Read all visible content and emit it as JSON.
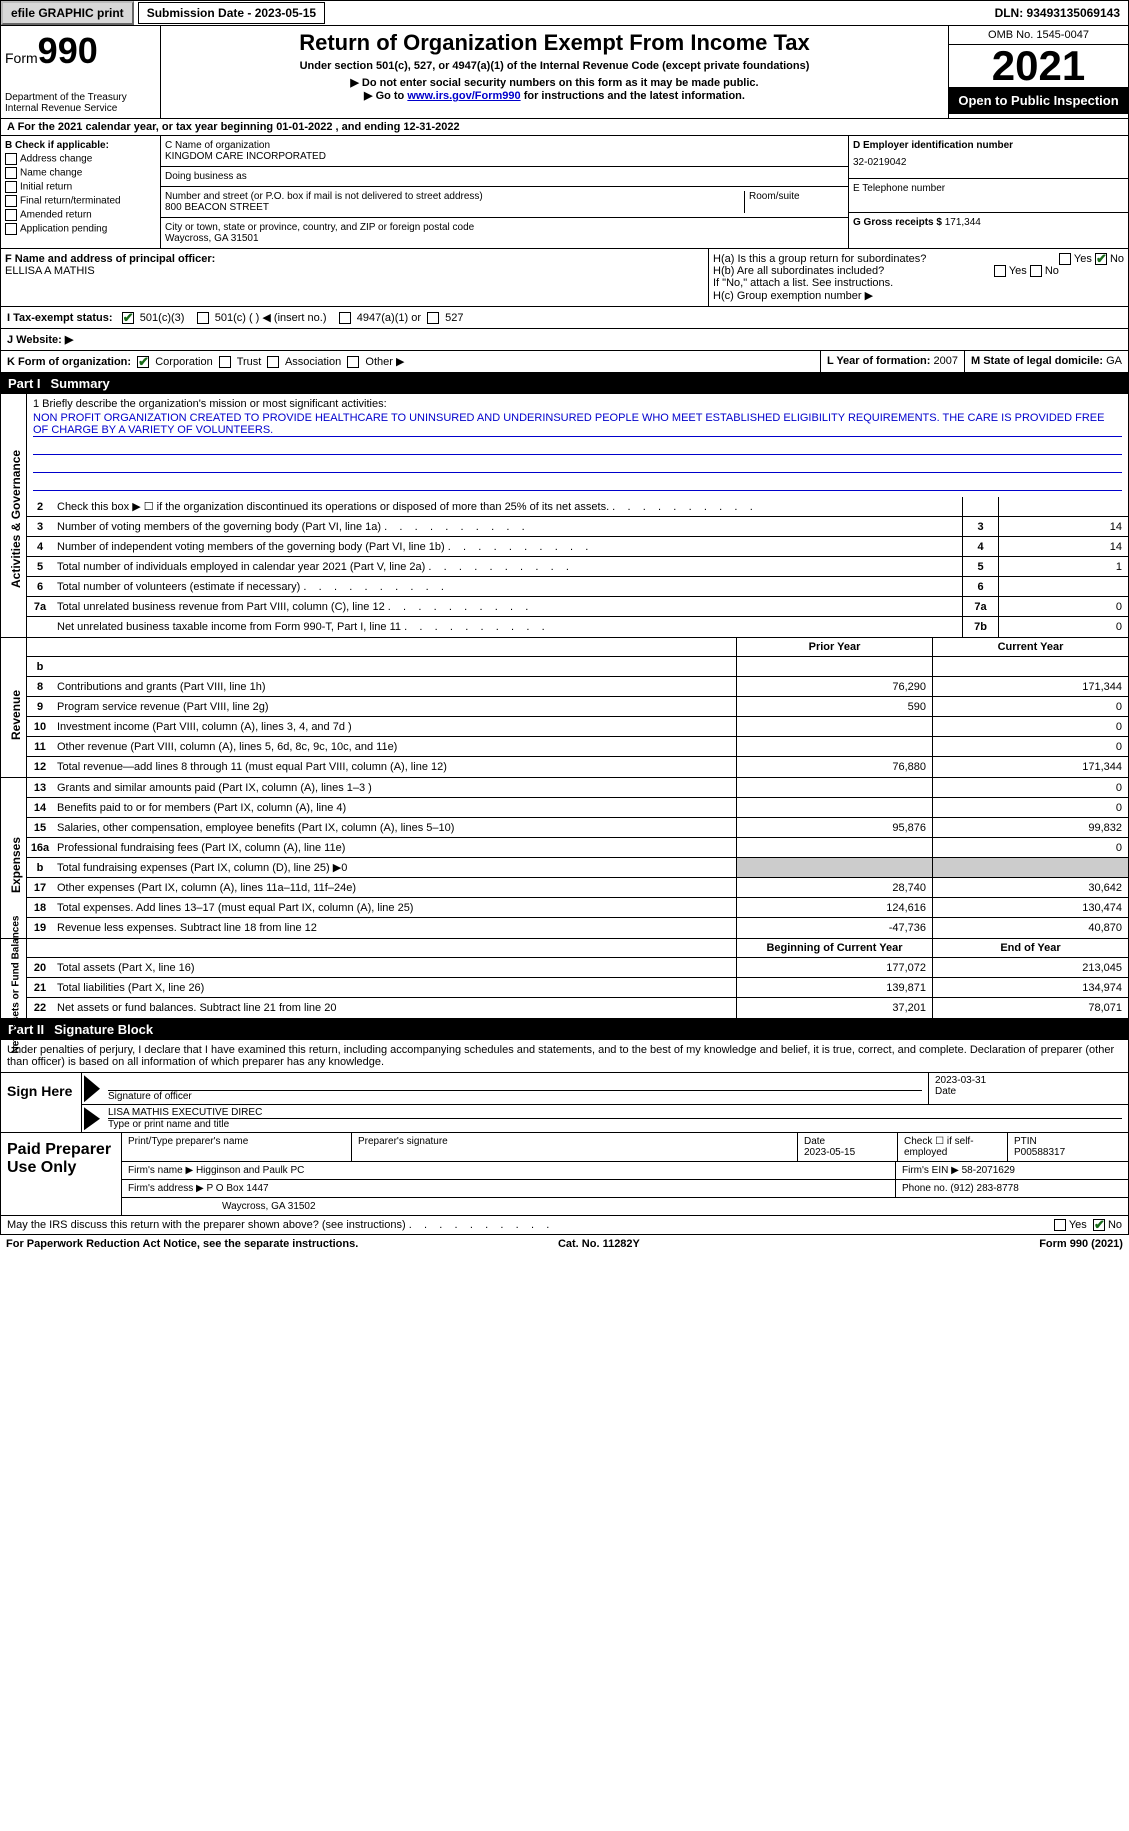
{
  "topbar": {
    "efile_btn": "efile GRAPHIC print",
    "sub_date_lbl": "Submission Date - 2023-05-15",
    "dln": "DLN: 93493135069143"
  },
  "header": {
    "form_lbl": "Form",
    "form_num": "990",
    "dept": "Department of the Treasury Internal Revenue Service",
    "title": "Return of Organization Exempt From Income Tax",
    "subtitle": "Under section 501(c), 527, or 4947(a)(1) of the Internal Revenue Code (except private foundations)",
    "note1": "▶ Do not enter social security numbers on this form as it may be made public.",
    "note2_pre": "▶ Go to ",
    "note2_link": "www.irs.gov/Form990",
    "note2_post": " for instructions and the latest information.",
    "omb": "OMB No. 1545-0047",
    "year": "2021",
    "open": "Open to Public Inspection"
  },
  "row_a": "A For the 2021 calendar year, or tax year beginning 01-01-2022    , and ending 12-31-2022",
  "col_b": {
    "hdr": "B Check if applicable:",
    "opts": [
      "Address change",
      "Name change",
      "Initial return",
      "Final return/terminated",
      "Amended return",
      "Application pending"
    ]
  },
  "col_c": {
    "name_lbl": "C Name of organization",
    "name": "KINGDOM CARE INCORPORATED",
    "dba_lbl": "Doing business as",
    "dba": "",
    "addr_lbl": "Number and street (or P.O. box if mail is not delivered to street address)",
    "addr": "800 BEACON STREET",
    "room_lbl": "Room/suite",
    "city_lbl": "City or town, state or province, country, and ZIP or foreign postal code",
    "city": "Waycross, GA  31501"
  },
  "col_de": {
    "d_lbl": "D Employer identification number",
    "d_val": "32-0219042",
    "e_lbl": "E Telephone number",
    "e_val": "",
    "g_lbl": "G Gross receipts $",
    "g_val": "171,344"
  },
  "col_f": {
    "lbl": "F  Name and address of principal officer:",
    "val": "ELLISA A MATHIS"
  },
  "col_h": {
    "ha_lbl": "H(a)  Is this a group return for subordinates?",
    "hb_lbl": "H(b)  Are all subordinates included?",
    "hb_note": "If \"No,\" attach a list. See instructions.",
    "hc_lbl": "H(c)  Group exemption number ▶",
    "yes": "Yes",
    "no": "No"
  },
  "row_i": {
    "lbl": "I    Tax-exempt status:",
    "o1": "501(c)(3)",
    "o2": "501(c) (  ) ◀ (insert no.)",
    "o3": "4947(a)(1) or",
    "o4": "527"
  },
  "row_j": {
    "lbl": "J   Website: ▶"
  },
  "row_k": {
    "k_lbl": "K Form of organization:",
    "k_opts": [
      "Corporation",
      "Trust",
      "Association",
      "Other ▶"
    ],
    "l_lbl": "L Year of formation:",
    "l_val": "2007",
    "m_lbl": "M State of legal domicile:",
    "m_val": "GA"
  },
  "part1": {
    "num": "Part I",
    "title": "Summary"
  },
  "mission": {
    "lbl": "1   Briefly describe the organization's mission or most significant activities:",
    "text": "NON PROFIT ORGANIZATION CREATED TO PROVIDE HEALTHCARE TO UNINSURED AND UNDERINSURED PEOPLE WHO MEET ESTABLISHED ELIGIBILITY REQUIREMENTS. THE CARE IS PROVIDED FREE OF CHARGE BY A VARIETY OF VOLUNTEERS."
  },
  "ag_lines": [
    {
      "n": "2",
      "d": "Check this box ▶ ☐ if the organization discontinued its operations or disposed of more than 25% of its net assets.",
      "box": "",
      "val": ""
    },
    {
      "n": "3",
      "d": "Number of voting members of the governing body (Part VI, line 1a)",
      "box": "3",
      "val": "14"
    },
    {
      "n": "4",
      "d": "Number of independent voting members of the governing body (Part VI, line 1b)",
      "box": "4",
      "val": "14"
    },
    {
      "n": "5",
      "d": "Total number of individuals employed in calendar year 2021 (Part V, line 2a)",
      "box": "5",
      "val": "1"
    },
    {
      "n": "6",
      "d": "Total number of volunteers (estimate if necessary)",
      "box": "6",
      "val": ""
    },
    {
      "n": "7a",
      "d": "Total unrelated business revenue from Part VIII, column (C), line 12",
      "box": "7a",
      "val": "0"
    },
    {
      "n": "",
      "d": "Net unrelated business taxable income from Form 990-T, Part I, line 11",
      "box": "7b",
      "val": "0"
    }
  ],
  "pycy": {
    "prior": "Prior Year",
    "current": "Current Year"
  },
  "rev_lines": [
    {
      "n": "b",
      "d": "",
      "v1": "",
      "v2": "",
      "shade": false
    },
    {
      "n": "8",
      "d": "Contributions and grants (Part VIII, line 1h)",
      "v1": "76,290",
      "v2": "171,344"
    },
    {
      "n": "9",
      "d": "Program service revenue (Part VIII, line 2g)",
      "v1": "590",
      "v2": "0"
    },
    {
      "n": "10",
      "d": "Investment income (Part VIII, column (A), lines 3, 4, and 7d )",
      "v1": "",
      "v2": "0"
    },
    {
      "n": "11",
      "d": "Other revenue (Part VIII, column (A), lines 5, 6d, 8c, 9c, 10c, and 11e)",
      "v1": "",
      "v2": "0"
    },
    {
      "n": "12",
      "d": "Total revenue—add lines 8 through 11 (must equal Part VIII, column (A), line 12)",
      "v1": "76,880",
      "v2": "171,344"
    }
  ],
  "exp_lines": [
    {
      "n": "13",
      "d": "Grants and similar amounts paid (Part IX, column (A), lines 1–3 )",
      "v1": "",
      "v2": "0"
    },
    {
      "n": "14",
      "d": "Benefits paid to or for members (Part IX, column (A), line 4)",
      "v1": "",
      "v2": "0"
    },
    {
      "n": "15",
      "d": "Salaries, other compensation, employee benefits (Part IX, column (A), lines 5–10)",
      "v1": "95,876",
      "v2": "99,832"
    },
    {
      "n": "16a",
      "d": "Professional fundraising fees (Part IX, column (A), line 11e)",
      "v1": "",
      "v2": "0"
    },
    {
      "n": "b",
      "d": "Total fundraising expenses (Part IX, column (D), line 25) ▶0",
      "v1": "",
      "v2": "",
      "shade": true
    },
    {
      "n": "17",
      "d": "Other expenses (Part IX, column (A), lines 11a–11d, 11f–24e)",
      "v1": "28,740",
      "v2": "30,642"
    },
    {
      "n": "18",
      "d": "Total expenses. Add lines 13–17 (must equal Part IX, column (A), line 25)",
      "v1": "124,616",
      "v2": "130,474"
    },
    {
      "n": "19",
      "d": "Revenue less expenses. Subtract line 18 from line 12",
      "v1": "-47,736",
      "v2": "40,870"
    }
  ],
  "na_hdr": {
    "begin": "Beginning of Current Year",
    "end": "End of Year"
  },
  "na_lines": [
    {
      "n": "20",
      "d": "Total assets (Part X, line 16)",
      "v1": "177,072",
      "v2": "213,045"
    },
    {
      "n": "21",
      "d": "Total liabilities (Part X, line 26)",
      "v1": "139,871",
      "v2": "134,974"
    },
    {
      "n": "22",
      "d": "Net assets or fund balances. Subtract line 21 from line 20",
      "v1": "37,201",
      "v2": "78,071"
    }
  ],
  "vtabs": {
    "ag": "Activities & Governance",
    "rev": "Revenue",
    "exp": "Expenses",
    "na": "Net Assets or Fund Balances"
  },
  "part2": {
    "num": "Part II",
    "title": "Signature Block"
  },
  "penalties": "Under penalties of perjury, I declare that I have examined this return, including accompanying schedules and statements, and to the best of my knowledge and belief, it is true, correct, and complete. Declaration of preparer (other than officer) is based on all information of which preparer has any knowledge.",
  "sign": {
    "lbl": "Sign Here",
    "sig_lbl": "Signature of officer",
    "date_val": "2023-03-31",
    "date_lbl": "Date",
    "name_val": "LISA MATHIS  EXECUTIVE DIREC",
    "name_lbl": "Type or print name and title"
  },
  "paid": {
    "lbl": "Paid Preparer Use Only",
    "r1": {
      "c1_lbl": "Print/Type preparer's name",
      "c1": "",
      "c2_lbl": "Preparer's signature",
      "c2": "",
      "c3_lbl": "Date",
      "c3": "2023-05-15",
      "c4_lbl": "Check ☐ if self-employed",
      "c5_lbl": "PTIN",
      "c5": "P00588317"
    },
    "r2": {
      "lbl": "Firm's name    ▶",
      "val": "Higginson and Paulk PC",
      "ein_lbl": "Firm's EIN ▶",
      "ein": "58-2071629"
    },
    "r3": {
      "lbl": "Firm's address ▶",
      "val": "P O Box 1447",
      "phone_lbl": "Phone no.",
      "phone": "(912) 283-8778"
    },
    "r4": {
      "val": "Waycross, GA  31502"
    }
  },
  "discuss": {
    "lbl": "May the IRS discuss this return with the preparer shown above? (see instructions)",
    "yes": "Yes",
    "no": "No"
  },
  "footer": {
    "l": "For Paperwork Reduction Act Notice, see the separate instructions.",
    "m": "Cat. No. 11282Y",
    "r": "Form 990 (2021)"
  },
  "colors": {
    "link": "#0000cc",
    "check": "#1a6b1a",
    "shade": "#cccccc"
  }
}
